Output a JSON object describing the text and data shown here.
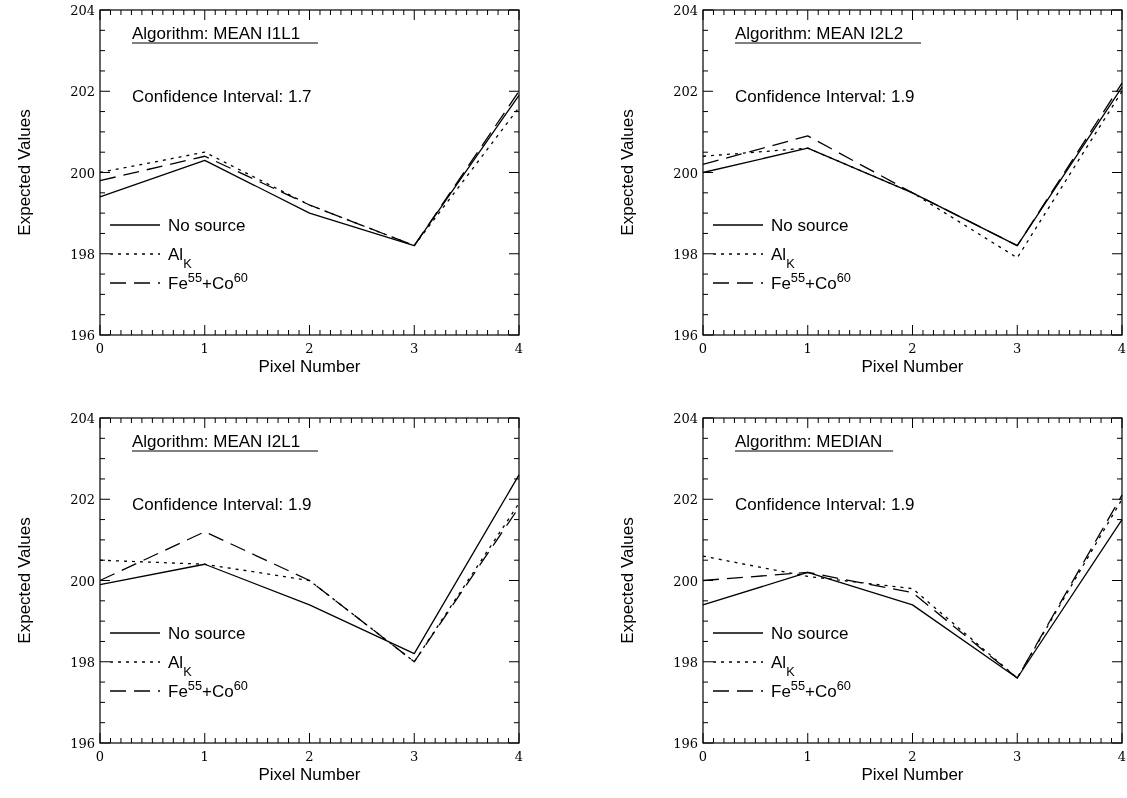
{
  "chart_data": [
    {
      "type": "line",
      "title": "Algorithm: MEAN I1L1",
      "annotations": [
        "Confidence Interval: 1.7"
      ],
      "xlabel": "Pixel Number",
      "ylabel": "Expected Values",
      "x": [
        0,
        1,
        2,
        3,
        4
      ],
      "xlim": [
        0,
        4
      ],
      "xticks": [
        0,
        1,
        2,
        3,
        4
      ],
      "ylim": [
        196,
        204
      ],
      "yticks": [
        196,
        198,
        200,
        202,
        204
      ],
      "legend": "bottom left",
      "series": [
        {
          "name": "No source",
          "color": "#000000",
          "line_style": "solid",
          "values": [
            199.4,
            200.3,
            199.0,
            198.2,
            201.9
          ]
        },
        {
          "name": "Al$_{K}$",
          "color": "#000000",
          "line_style": "dotted",
          "values": [
            200.0,
            200.5,
            199.2,
            198.2,
            201.6
          ]
        },
        {
          "name": "Fe$^{55}$+Co$^{60}$",
          "color": "#000000",
          "line_style": "dashed",
          "values": [
            199.8,
            200.4,
            199.2,
            198.2,
            202.0
          ]
        }
      ]
    },
    {
      "type": "line",
      "title": "Algorithm: MEAN I2L2",
      "annotations": [
        "Confidence Interval: 1.9"
      ],
      "xlabel": "Pixel Number",
      "ylabel": "Expected Values",
      "x": [
        0,
        1,
        2,
        3,
        4
      ],
      "xlim": [
        0,
        4
      ],
      "xticks": [
        0,
        1,
        2,
        3,
        4
      ],
      "ylim": [
        196,
        204
      ],
      "yticks": [
        196,
        198,
        200,
        202,
        204
      ],
      "legend": "bottom left",
      "series": [
        {
          "name": "No source",
          "color": "#000000",
          "line_style": "solid",
          "values": [
            200.0,
            200.6,
            199.5,
            198.2,
            202.1
          ]
        },
        {
          "name": "Al$_{K}$",
          "color": "#000000",
          "line_style": "dotted",
          "values": [
            200.4,
            200.6,
            199.5,
            197.9,
            202.0
          ]
        },
        {
          "name": "Fe$^{55}$+Co$^{60}$",
          "color": "#000000",
          "line_style": "dashed",
          "values": [
            200.2,
            200.9,
            199.5,
            198.2,
            202.2
          ]
        }
      ]
    },
    {
      "type": "line",
      "title": "Algorithm: MEAN I2L1",
      "annotations": [
        "Confidence Interval: 1.9"
      ],
      "xlabel": "Pixel Number",
      "ylabel": "Expected Values",
      "x": [
        0,
        1,
        2,
        3,
        4
      ],
      "xlim": [
        0,
        4
      ],
      "xticks": [
        0,
        1,
        2,
        3,
        4
      ],
      "ylim": [
        196,
        204
      ],
      "yticks": [
        196,
        198,
        200,
        202,
        204
      ],
      "legend": "bottom left",
      "series": [
        {
          "name": "No source",
          "color": "#000000",
          "line_style": "solid",
          "values": [
            199.9,
            200.4,
            199.4,
            198.2,
            202.6
          ]
        },
        {
          "name": "Al$_{K}$",
          "color": "#000000",
          "line_style": "dotted",
          "values": [
            200.5,
            200.4,
            200.0,
            198.0,
            201.9
          ]
        },
        {
          "name": "Fe$^{55}$+Co$^{60}$",
          "color": "#000000",
          "line_style": "dashed",
          "values": [
            200.0,
            201.2,
            200.0,
            198.0,
            201.8
          ]
        }
      ]
    },
    {
      "type": "line",
      "title": "Algorithm: MEDIAN",
      "annotations": [
        "Confidence Interval: 1.9"
      ],
      "xlabel": "Pixel Number",
      "ylabel": "Expected Values",
      "x": [
        0,
        1,
        2,
        3,
        4
      ],
      "xlim": [
        0,
        4
      ],
      "xticks": [
        0,
        1,
        2,
        3,
        4
      ],
      "ylim": [
        196,
        204
      ],
      "yticks": [
        196,
        198,
        200,
        202,
        204
      ],
      "legend": "bottom left",
      "series": [
        {
          "name": "No source",
          "color": "#000000",
          "line_style": "solid",
          "values": [
            199.4,
            200.2,
            199.4,
            197.6,
            201.5
          ]
        },
        {
          "name": "Al$_{K}$",
          "color": "#000000",
          "line_style": "dotted",
          "values": [
            200.6,
            200.1,
            199.8,
            197.6,
            202.0
          ]
        },
        {
          "name": "Fe$^{55}$+Co$^{60}$",
          "color": "#000000",
          "line_style": "dashed",
          "values": [
            200.0,
            200.2,
            199.7,
            197.6,
            202.1
          ]
        }
      ]
    }
  ]
}
